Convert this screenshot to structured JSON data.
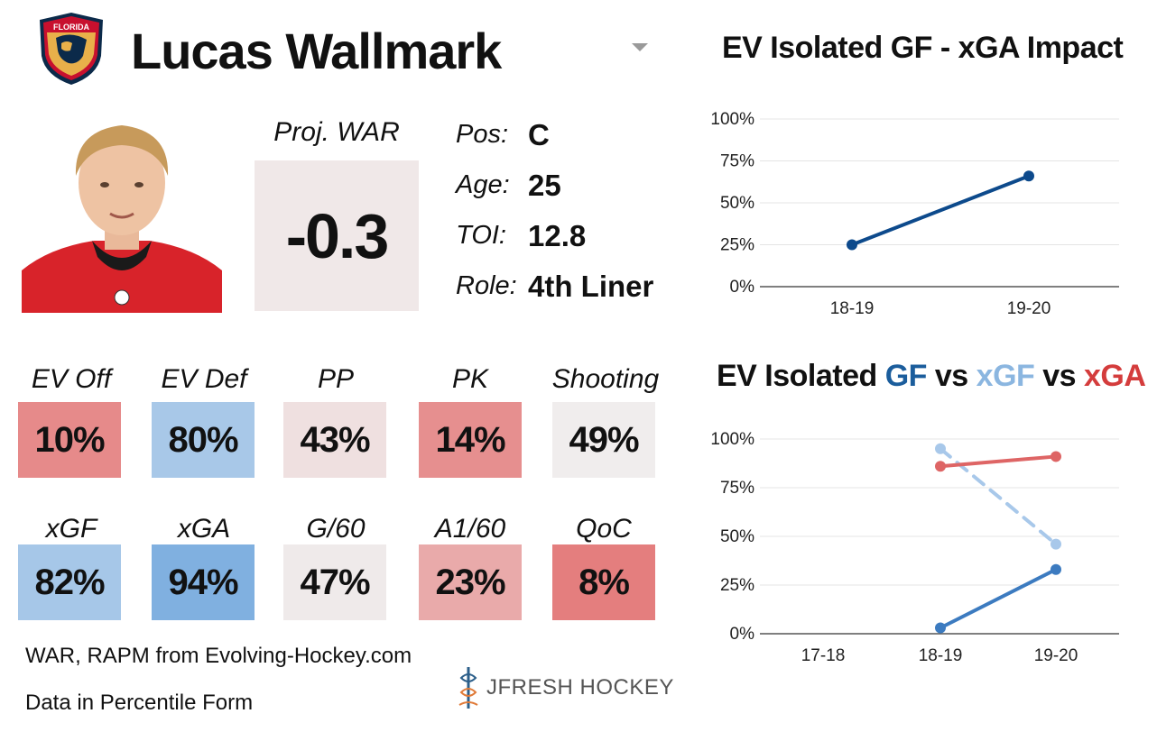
{
  "player": {
    "name": "Lucas Wallmark",
    "team_logo_text": "FLORIDA"
  },
  "projection": {
    "label": "Proj. WAR",
    "value": "-0.3"
  },
  "info": [
    {
      "label": "Pos:",
      "value": "C"
    },
    {
      "label": "Age:",
      "value": "25"
    },
    {
      "label": "TOI:",
      "value": "12.8"
    },
    {
      "label": "Role:",
      "value": "4th Liner"
    }
  ],
  "stats_row1": [
    {
      "label": "EV Off",
      "value": "10%",
      "color": "#e68a8a"
    },
    {
      "label": "EV Def",
      "value": "80%",
      "color": "#a8c8e8"
    },
    {
      "label": "PP",
      "value": "43%",
      "color": "#efe0e0"
    },
    {
      "label": "PK",
      "value": "14%",
      "color": "#e68f8f"
    },
    {
      "label": "Shooting",
      "value": "49%",
      "color": "#f0eded"
    }
  ],
  "stats_row2": [
    {
      "label": "xGF",
      "value": "82%",
      "color": "#a6c7e8"
    },
    {
      "label": "xGA",
      "value": "94%",
      "color": "#80b0e0"
    },
    {
      "label": "G/60",
      "value": "47%",
      "color": "#efeaea"
    },
    {
      "label": "A1/60",
      "value": "23%",
      "color": "#e9aaaa"
    },
    {
      "label": "QoC",
      "value": "8%",
      "color": "#e47e7e"
    }
  ],
  "footer": {
    "source": "WAR, RAPM from  Evolving-Hockey.com",
    "note": "Data in Percentile Form",
    "brand": "JFRESH HOCKEY"
  },
  "chart_data": [
    {
      "type": "line",
      "title": "EV Isolated GF - xGA Impact",
      "categories": [
        "18-19",
        "19-20"
      ],
      "series": [
        {
          "values": [
            25,
            66
          ],
          "color": "#0d4a8c",
          "style": "solid"
        }
      ],
      "ylim": [
        0,
        100
      ],
      "yticks": [
        "0%",
        "25%",
        "50%",
        "75%",
        "100%"
      ],
      "grid": true
    },
    {
      "type": "line",
      "title_parts": [
        {
          "text": "EV Isolated ",
          "color": "#111111"
        },
        {
          "text": "GF",
          "color": "#1b5d9c"
        },
        {
          "text": " vs ",
          "color": "#111111"
        },
        {
          "text": "xGF",
          "color": "#8bb6e0"
        },
        {
          "text": " vs ",
          "color": "#111111"
        },
        {
          "text": "xGA",
          "color": "#d43c3c"
        }
      ],
      "categories": [
        "17-18",
        "18-19",
        "19-20"
      ],
      "series": [
        {
          "name": "GF",
          "values": [
            null,
            3,
            33
          ],
          "color": "#3c7bc0",
          "style": "solid"
        },
        {
          "name": "xGF",
          "values": [
            null,
            95,
            46
          ],
          "color": "#a8c8ea",
          "style": "dashed"
        },
        {
          "name": "xGA",
          "values": [
            null,
            86,
            91
          ],
          "color": "#de6565",
          "style": "solid"
        }
      ],
      "ylim": [
        0,
        100
      ],
      "yticks": [
        "0%",
        "25%",
        "50%",
        "75%",
        "100%"
      ],
      "grid": true
    }
  ]
}
